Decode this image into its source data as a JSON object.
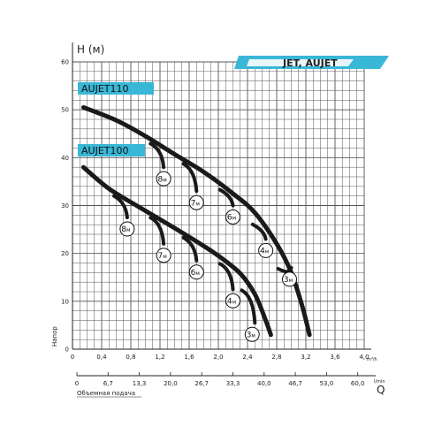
{
  "chart_data": {
    "type": "line",
    "title": "JET, AUJET",
    "ylabel": "H (м)",
    "ylim": [
      0,
      60
    ],
    "xlim": [
      0,
      4
    ],
    "x_unit": "m³/h",
    "y_ticks": [
      "0",
      "10",
      "20",
      "30",
      "40",
      "50",
      "60"
    ],
    "x_ticks": [
      "0",
      "0,4",
      "0,8",
      "1,2",
      "1,6",
      "2,0",
      "2,4",
      "2,8",
      "3,2",
      "3,6",
      "4,0"
    ],
    "secondary_axis": {
      "label": "Q",
      "unit": "l/min",
      "title": "Объемная подача",
      "ticks": [
        "0",
        "6,7",
        "13,3",
        "20,0",
        "26,7",
        "33,3",
        "40,0",
        "46,7",
        "53,0",
        "60,0"
      ]
    },
    "vertical_label": "Напор",
    "grid": true,
    "series": [
      {
        "name": "AUJET110",
        "curve": [
          [
            0.15,
            50.5
          ],
          [
            0.6,
            47.8
          ],
          [
            1.0,
            44.5
          ],
          [
            1.4,
            40.7
          ],
          [
            1.8,
            37.0
          ],
          [
            2.2,
            32.5
          ],
          [
            2.5,
            28.5
          ],
          [
            2.8,
            22.0
          ],
          [
            3.0,
            16.0
          ],
          [
            3.15,
            9.0
          ],
          [
            3.25,
            3.0
          ]
        ],
        "depths": [
          {
            "label": "8",
            "x": 1.25,
            "h": 38.0
          },
          {
            "label": "7",
            "x": 1.7,
            "h": 33.0
          },
          {
            "label": "6",
            "x": 2.2,
            "h": 30.0
          },
          {
            "label": "4",
            "x": 2.65,
            "h": 23.0
          },
          {
            "label": "3",
            "x": 3.0,
            "h": 17.0
          }
        ]
      },
      {
        "name": "AUJET100",
        "curve": [
          [
            0.15,
            38.0
          ],
          [
            0.5,
            33.5
          ],
          [
            0.9,
            29.8
          ],
          [
            1.3,
            26.2
          ],
          [
            1.7,
            22.5
          ],
          [
            2.0,
            19.5
          ],
          [
            2.3,
            15.8
          ],
          [
            2.5,
            11.5
          ],
          [
            2.65,
            6.0
          ],
          [
            2.72,
            3.0
          ]
        ],
        "depths": [
          {
            "label": "8",
            "x": 0.75,
            "h": 27.5
          },
          {
            "label": "7",
            "x": 1.25,
            "h": 22.0
          },
          {
            "label": "6",
            "x": 1.7,
            "h": 18.5
          },
          {
            "label": "4",
            "x": 2.2,
            "h": 12.5
          },
          {
            "label": "3",
            "x": 2.5,
            "h": 5.5
          }
        ]
      }
    ],
    "depth_unit": "м"
  },
  "colors": {
    "banner": "#39b7d6",
    "curve": "#1a1a1a",
    "grid": "#555555"
  }
}
